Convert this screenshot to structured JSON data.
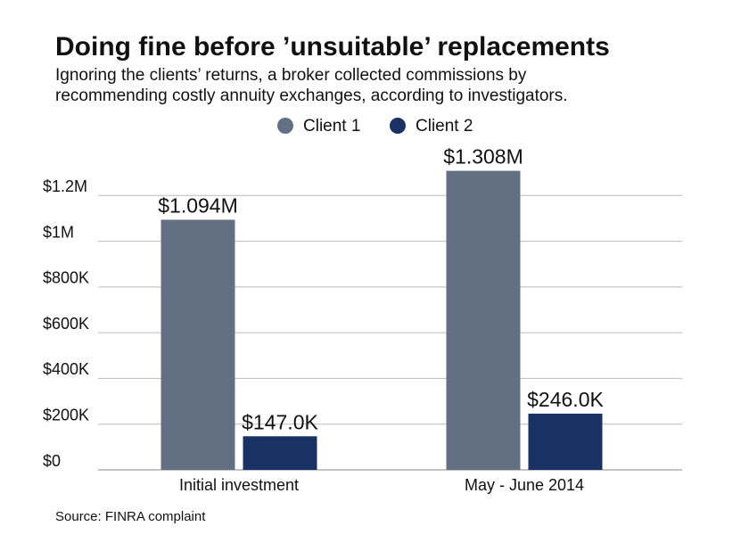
{
  "chart_data": {
    "type": "bar",
    "title": "Doing fine before ’unsuitable’ replacements",
    "subtitle": [
      "Ignoring the clients’ returns, a broker collected commissions by",
      "recommending costly annuity exchanges, according to investigators."
    ],
    "categories": [
      "Initial investment",
      "May - June 2014"
    ],
    "series": [
      {
        "name": "Client 1",
        "color": "#637083",
        "values": [
          1094000,
          1308000
        ],
        "value_labels": [
          "$1.094M",
          "$1.308M"
        ]
      },
      {
        "name": "Client 2",
        "color": "#1a3163",
        "values": [
          147000,
          246000
        ],
        "value_labels": [
          "$147.0K",
          "$246.0K"
        ]
      }
    ],
    "ylim": [
      0,
      1400000
    ],
    "yticks": [
      {
        "value": 0,
        "label": "$0"
      },
      {
        "value": 200000,
        "label": "$200K"
      },
      {
        "value": 400000,
        "label": "$400K"
      },
      {
        "value": 600000,
        "label": "$600K"
      },
      {
        "value": 800000,
        "label": "$800K"
      },
      {
        "value": 1000000,
        "label": "$1M"
      },
      {
        "value": 1200000,
        "label": "$1.2M"
      }
    ],
    "grid": true,
    "legend": "top",
    "source": "Source: FINRA complaint"
  }
}
